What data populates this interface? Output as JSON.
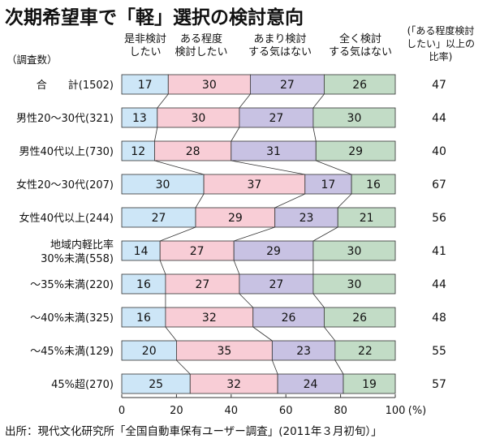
{
  "title": "次期希望車で「軽」選択の検討意向",
  "source": "出所：現代文化研究所「全国自動車保有ユーザー調査」(2011年３月初旬）」",
  "colors": [
    "#cde6f7",
    "#f8cdd6",
    "#c8c2e3",
    "#c2dcc6"
  ],
  "chart_data": {
    "type": "bar",
    "stacked": true,
    "orientation": "horizontal",
    "count_header": "（調査数）",
    "series_headers": [
      [
        "是非検討",
        "したい"
      ],
      [
        "ある程度",
        "検討したい"
      ],
      [
        "あまり検討",
        "する気はない"
      ],
      [
        "全く検討",
        "する気はない"
      ]
    ],
    "right_header": [
      "(「ある程度検討",
      "したい」以上の",
      "比率)"
    ],
    "categories": [
      [
        "合　　計(1502)"
      ],
      [
        "男性20～30代(321)"
      ],
      [
        "男性40代以上(730)"
      ],
      [
        "女性20～30代(207)"
      ],
      [
        "女性40代以上(244)"
      ],
      [
        "地域内軽比率",
        "30%未満(558)"
      ],
      [
        "～35%未満(220)"
      ],
      [
        "～40%未満(325)"
      ],
      [
        "～45%未満(129)"
      ],
      [
        "45%超(270)"
      ]
    ],
    "series": [
      {
        "values": [
          17,
          13,
          12,
          30,
          27,
          14,
          16,
          16,
          20,
          25
        ]
      },
      {
        "values": [
          30,
          30,
          28,
          37,
          29,
          27,
          27,
          32,
          35,
          32
        ]
      },
      {
        "values": [
          27,
          27,
          31,
          17,
          23,
          29,
          27,
          26,
          23,
          24
        ]
      },
      {
        "values": [
          26,
          30,
          29,
          16,
          21,
          30,
          30,
          26,
          22,
          19
        ]
      }
    ],
    "right_values": [
      47,
      44,
      40,
      67,
      56,
      41,
      44,
      48,
      55,
      57
    ],
    "xlim": [
      0,
      100
    ],
    "xticks": [
      0,
      20,
      40,
      60,
      80,
      100
    ],
    "x_unit": "(%)"
  }
}
